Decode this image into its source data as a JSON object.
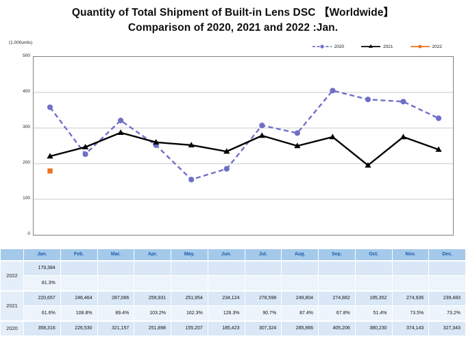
{
  "title": {
    "line1": "Quantity of Total Shipment of Built-in Lens DSC 【Worldwide】",
    "line2": "Comparison of 2020, 2021 and 2022 :Jan."
  },
  "chart": {
    "units_label": "(1,000units)",
    "y_ticks": [
      "500",
      "400",
      "300",
      "200",
      "100",
      "0"
    ],
    "legend": [
      {
        "label": "2020",
        "color": "#6f6fc8",
        "style": "dashed",
        "marker": "circle"
      },
      {
        "label": "2021",
        "color": "#000000",
        "style": "solid",
        "marker": "triangle"
      },
      {
        "label": "2022",
        "color": "#ed7420",
        "style": "solid",
        "marker": "square"
      }
    ],
    "grid_color": "#c9c9c9",
    "frame_color": "#7f7f7f"
  },
  "chart_data": {
    "type": "line",
    "title": "Quantity of Total Shipment of Built-in Lens DSC 【Worldwide】 Comparison of 2020, 2021 and 2022 :Jan.",
    "categories": [
      "Jan.",
      "Feb.",
      "Mar.",
      "Apr.",
      "May.",
      "Jun.",
      "Jul.",
      "Aug.",
      "Sep.",
      "Oct.",
      "Nov.",
      "Dec."
    ],
    "xlabel": "",
    "ylabel": "(1,000units)",
    "ylim": [
      0,
      500
    ],
    "grid": true,
    "legend_position": "top-right",
    "series": [
      {
        "name": "2020",
        "color": "#6f6fc8",
        "dashed": true,
        "marker": "circle",
        "values": [
          358.316,
          226.53,
          321.157,
          251.898,
          155.207,
          185.423,
          307.324,
          285.866,
          405.206,
          380.23,
          374.143,
          327.343
        ]
      },
      {
        "name": "2021",
        "color": "#000000",
        "dashed": false,
        "marker": "triangle",
        "values": [
          220.657,
          246.464,
          287.066,
          259.931,
          251.954,
          234.124,
          278.598,
          249.804,
          274.882,
          195.352,
          274.935,
          239.483
        ]
      },
      {
        "name": "2022",
        "color": "#ed7420",
        "dashed": false,
        "marker": "square",
        "values": [
          179.384,
          null,
          null,
          null,
          null,
          null,
          null,
          null,
          null,
          null,
          null,
          null
        ]
      }
    ]
  },
  "table": {
    "months": [
      "Jan.",
      "Feb.",
      "Mar.",
      "Apr.",
      "May.",
      "Jun.",
      "Jul.",
      "Aug.",
      "Sep.",
      "Oct.",
      "Nov.",
      "Dec."
    ],
    "rows": [
      {
        "year": "2022",
        "values": [
          "179,384",
          "",
          "",
          "",
          "",
          "",
          "",
          "",
          "",
          "",
          "",
          ""
        ],
        "percents": [
          "81.3%",
          "",
          "",
          "",
          "",
          "",
          "",
          "",
          "",
          "",
          "",
          ""
        ]
      },
      {
        "year": "2021",
        "values": [
          "220,657",
          "246,464",
          "287,066",
          "259,931",
          "251,954",
          "234,124",
          "278,598",
          "249,804",
          "274,882",
          "195,352",
          "274,935",
          "239,483"
        ],
        "percents": [
          "61.6%",
          "108.8%",
          "89.4%",
          "103.2%",
          "162.3%",
          "126.3%",
          "90.7%",
          "87.4%",
          "67.8%",
          "51.4%",
          "73.5%",
          "73.2%"
        ]
      },
      {
        "year": "2020",
        "values": [
          "358,316",
          "226,530",
          "321,157",
          "251,898",
          "155,207",
          "185,423",
          "307,324",
          "285,866",
          "405,206",
          "380,230",
          "374,143",
          "327,343"
        ],
        "percents": null
      }
    ]
  }
}
